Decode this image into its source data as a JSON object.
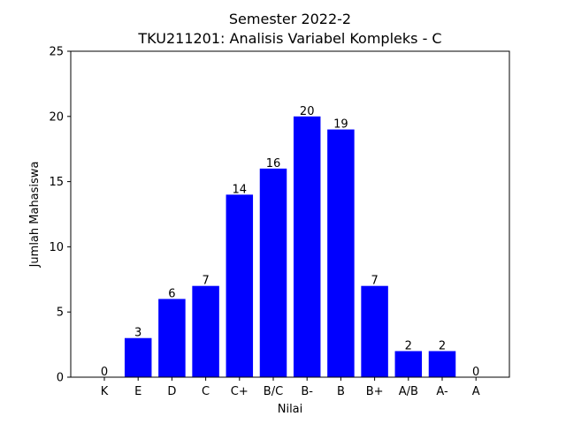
{
  "chart_data": {
    "type": "bar",
    "title": [
      "Semester 2022-2",
      "TKU211201: Analisis Variabel Kompleks - C"
    ],
    "xlabel": "Nilai",
    "ylabel": "Jumlah Mahasiswa",
    "categories": [
      "K",
      "E",
      "D",
      "C",
      "C+",
      "B/C",
      "B-",
      "B",
      "B+",
      "A/B",
      "A-",
      "A"
    ],
    "values": [
      0,
      3,
      6,
      7,
      14,
      16,
      20,
      19,
      7,
      2,
      2,
      0
    ],
    "data_labels": [
      "0",
      "3",
      "6",
      "7",
      "14",
      "16",
      "20",
      "19",
      "7",
      "2",
      "2",
      "0"
    ],
    "yticks": [
      0,
      5,
      10,
      15,
      20,
      25
    ],
    "ylim": [
      0,
      25
    ],
    "bar_color": "#0000ff",
    "grid": false,
    "legend": false
  }
}
